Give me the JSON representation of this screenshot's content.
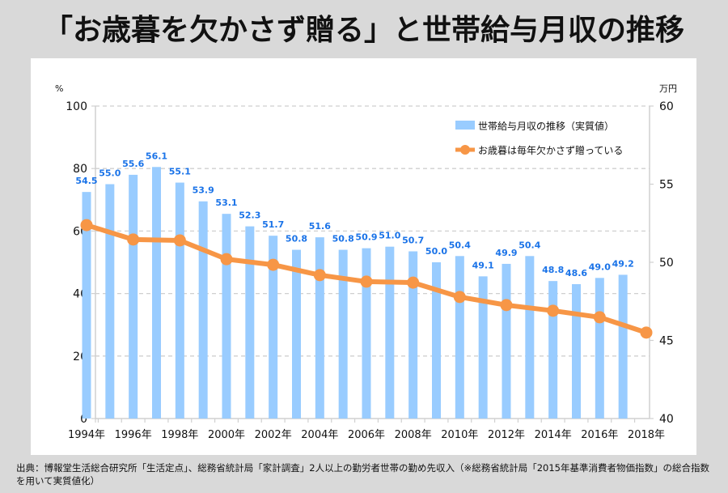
{
  "title": "「お歳暮を欠かさず贈る」と世帯給与月収の推移",
  "source": "出典：博報堂生活総合研究所「生活定点」、総務省統計局「家計調査」2人以上の勤労者世帯の勤め先収入（※総務省統計局「2015年基準消費者物価指数」の総合指数を用いて実質値化）",
  "chart_data": {
    "type": "bar+line",
    "title": "「お歳暮を欠かさず贈る」と世帯給与月収の推移",
    "left_axis": {
      "unit": "%",
      "range": [
        0,
        100
      ],
      "ticks": [
        0,
        20,
        40,
        60,
        80,
        100
      ]
    },
    "right_axis": {
      "unit": "万円",
      "range": [
        40,
        60
      ],
      "ticks": [
        40,
        45,
        50,
        55,
        60
      ]
    },
    "x_tick_labels": [
      "1994年",
      "1996年",
      "1998年",
      "2000年",
      "2002年",
      "2004年",
      "2006年",
      "2008年",
      "2010年",
      "2012年",
      "2014年",
      "2016年",
      "2018年"
    ],
    "grid": true,
    "legend_position": "top-right",
    "series": [
      {
        "name": "世帯給与月収の推移（実質値）",
        "type": "bar",
        "axis": "right",
        "color": "#99ccff",
        "label_color": "#1a73e8",
        "x": [
          1994,
          1995,
          1996,
          1997,
          1998,
          1999,
          2000,
          2001,
          2002,
          2003,
          2004,
          2005,
          2006,
          2007,
          2008,
          2009,
          2010,
          2011,
          2012,
          2013,
          2014,
          2015,
          2016,
          2017
        ],
        "values": [
          54.5,
          55.0,
          55.6,
          56.1,
          55.1,
          53.9,
          53.1,
          52.3,
          51.7,
          50.8,
          51.6,
          50.8,
          50.9,
          51.0,
          50.7,
          50.0,
          50.4,
          49.1,
          49.9,
          50.4,
          48.8,
          48.6,
          49.0,
          49.2
        ],
        "labels": [
          "54.5",
          "55.0",
          "55.6",
          "56.1",
          "55.1",
          "53.9",
          "53.1",
          "52.3",
          "51.7",
          "50.8",
          "51.6",
          "50.8",
          "50.9",
          "51.0",
          "50.7",
          "50.0",
          "50.4",
          "49.1",
          "49.9",
          "50.4",
          "48.8",
          "48.6",
          "49.0",
          "49.2"
        ]
      },
      {
        "name": "お歳暮は毎年欠かさず贈っている",
        "type": "line",
        "axis": "left",
        "color": "#f79646",
        "x": [
          1994,
          1996,
          1998,
          2000,
          2002,
          2004,
          2006,
          2008,
          2010,
          2012,
          2014,
          2016,
          2018
        ],
        "values": [
          61.9,
          57.3,
          57.0,
          51.0,
          49.2,
          45.9,
          43.8,
          43.5,
          38.9,
          36.3,
          34.5,
          32.4,
          27.5
        ]
      }
    ]
  }
}
